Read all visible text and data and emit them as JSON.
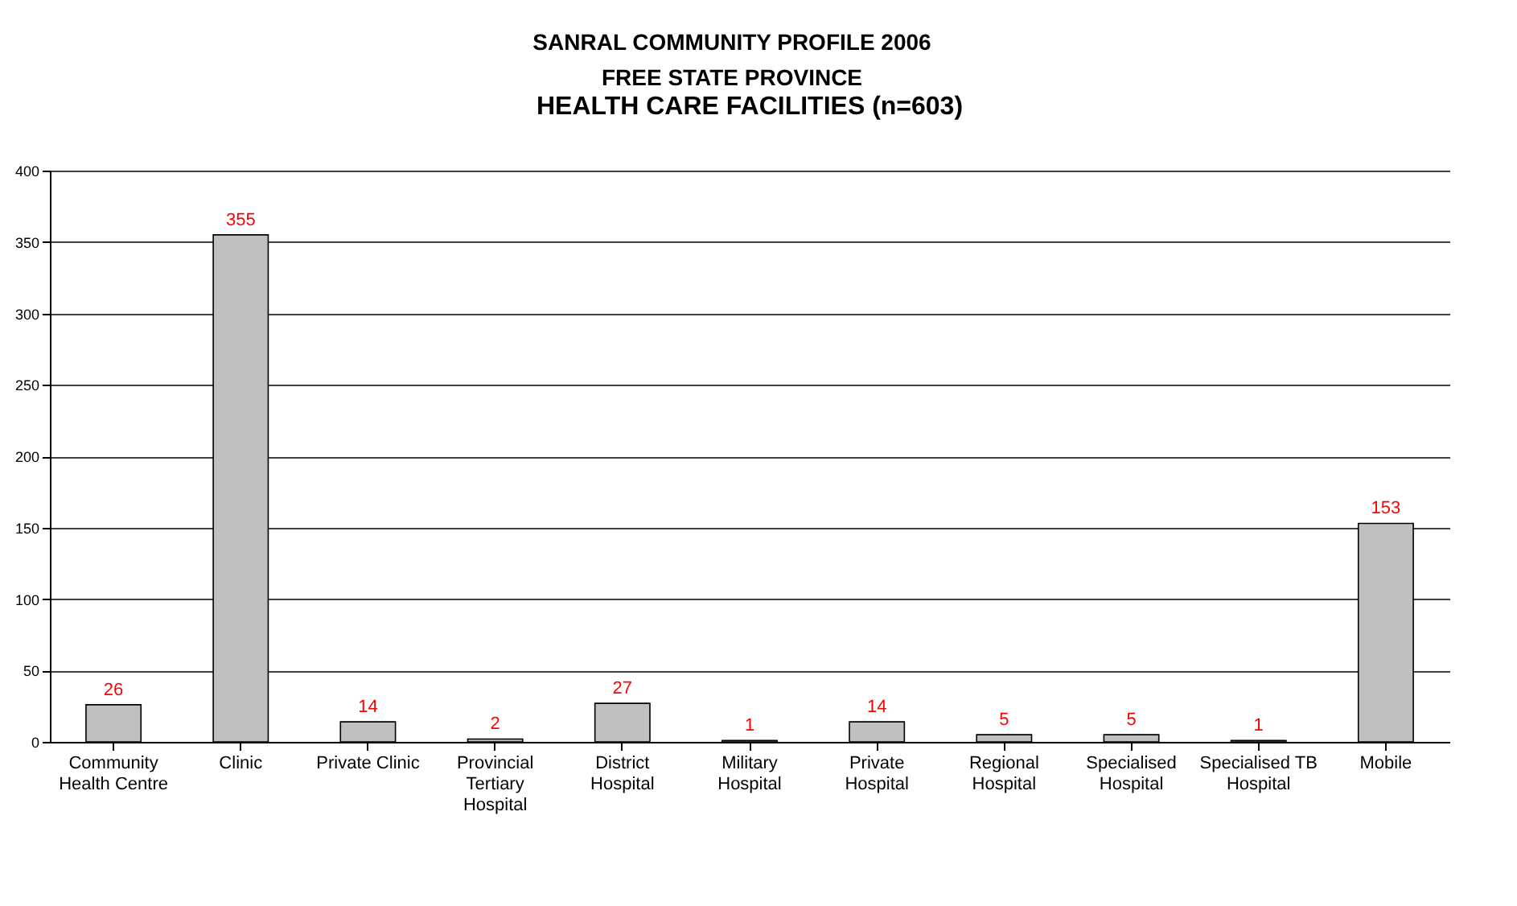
{
  "chart_data": {
    "type": "bar",
    "title": "HEALTH CARE FACILITIES (n=603)",
    "subtitle": "SANRAL COMMUNITY PROFILE 2006\nFREE STATE PROVINCE",
    "categories": [
      "Community Health Centre",
      "Clinic",
      "Private Clinic",
      "Provincial Tertiary Hospital",
      "District Hospital",
      "Military Hospital",
      "Private Hospital",
      "Regional Hospital",
      "Specialised Hospital",
      "Specialised TB Hospital",
      "Mobile"
    ],
    "values": [
      26,
      355,
      14,
      2,
      27,
      1,
      14,
      5,
      5,
      1,
      153
    ],
    "color": "#c0c0c0",
    "ylim": [
      0,
      400
    ],
    "yticks": [
      0,
      50,
      100,
      150,
      200,
      250,
      300,
      350,
      400
    ],
    "grid": "y",
    "data_labels": true
  }
}
